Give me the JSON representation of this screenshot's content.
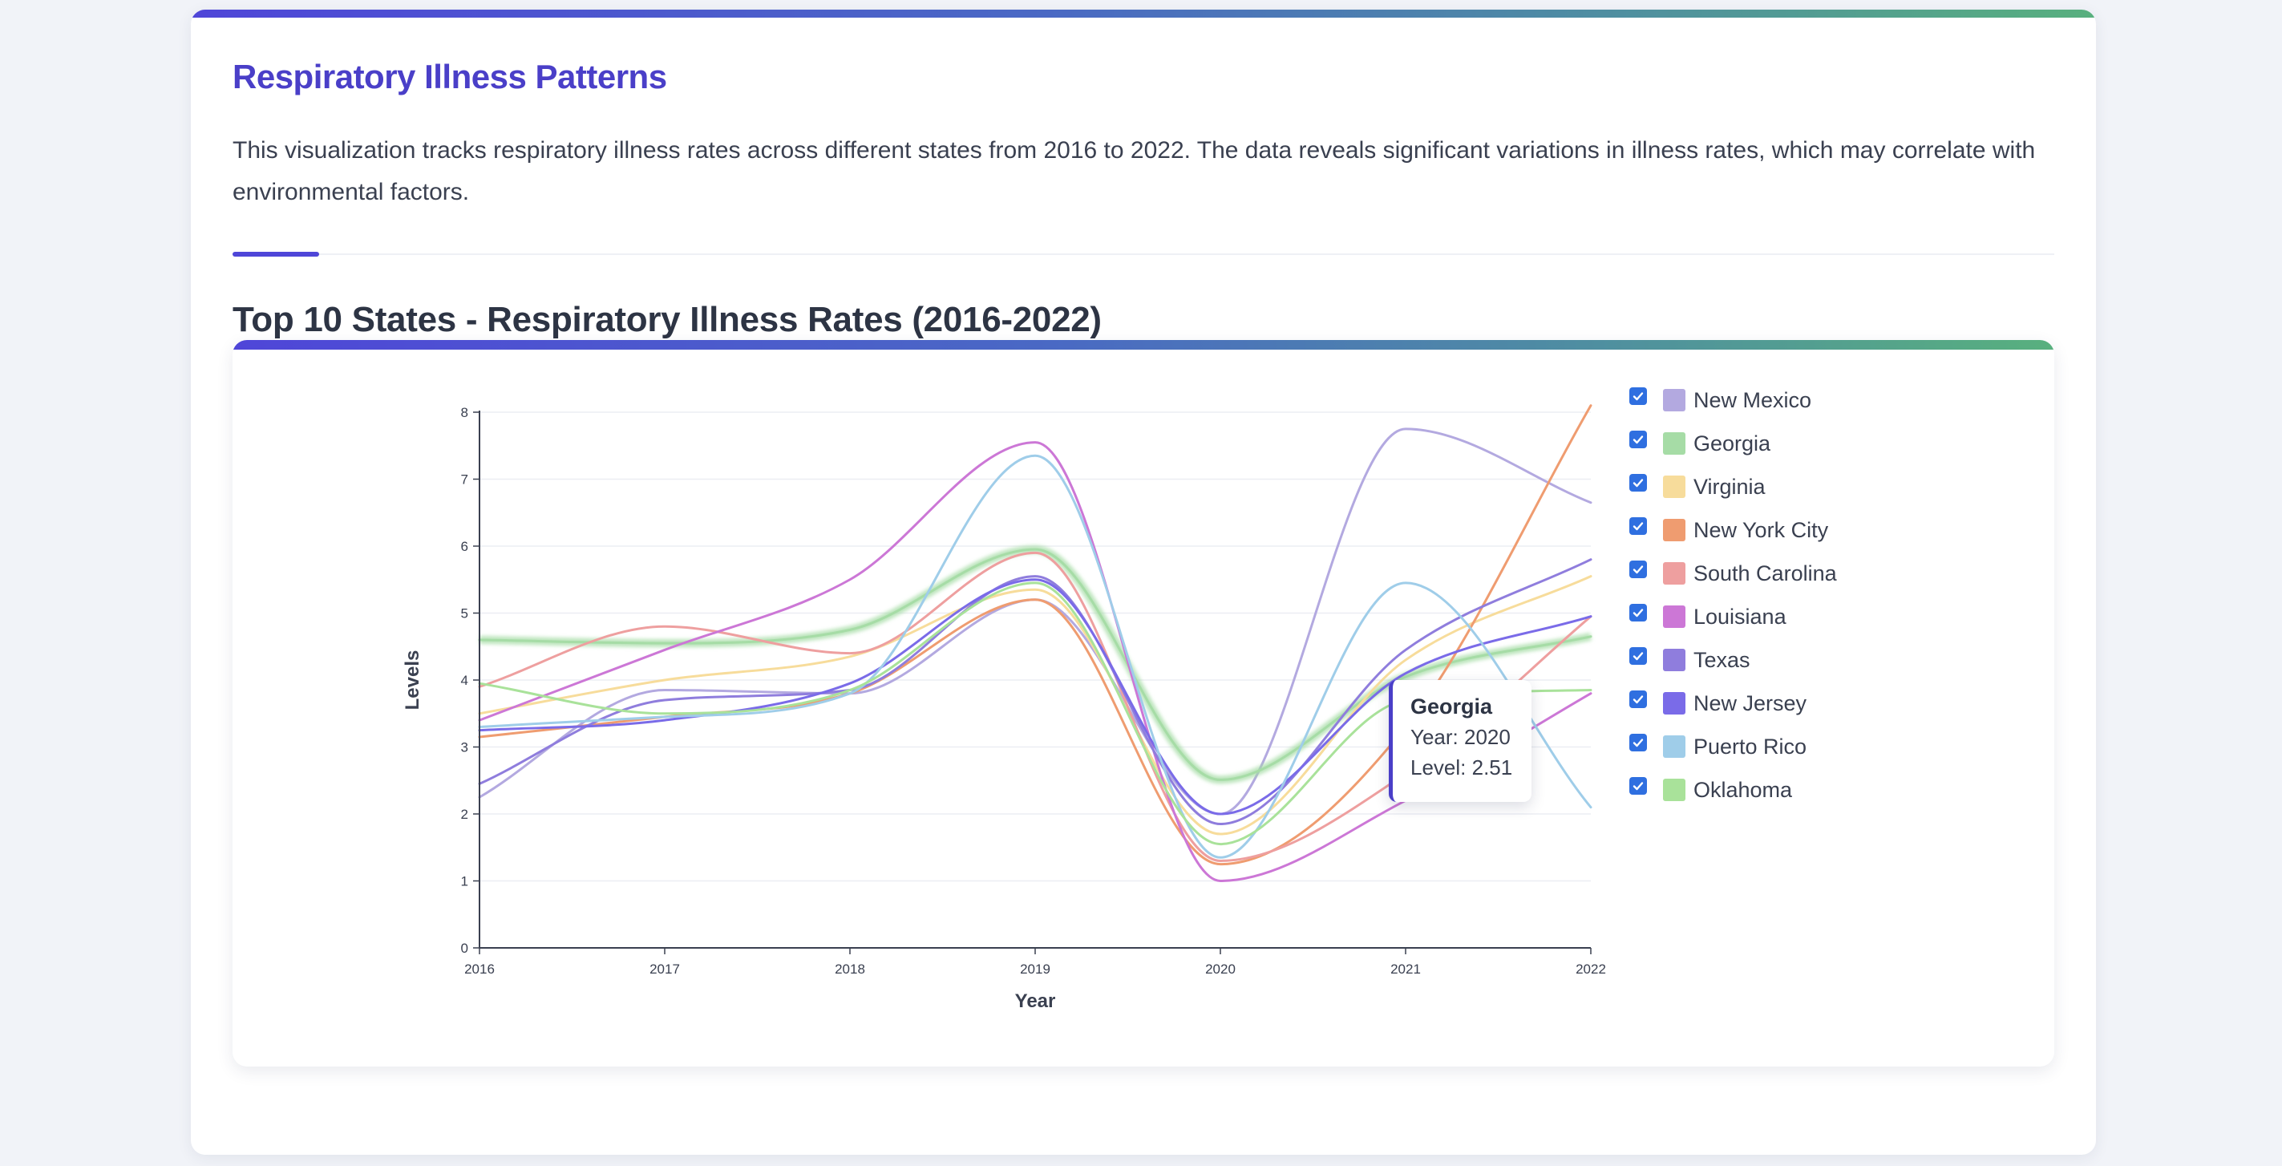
{
  "page": {
    "title": "Respiratory Illness Patterns",
    "description": "This visualization tracks respiratory illness rates across different states from 2016 to 2022. The data reveals significant variations in illness rates, which may correlate with environmental factors.",
    "accent_color": "#4a3fc8"
  },
  "chart_section": {
    "heading": "Top 10 States - Respiratory Illness Rates (2016-2022)"
  },
  "tooltip": {
    "state": "Georgia",
    "year_text": "Year: 2020",
    "level_text": "Level: 2.51"
  },
  "chart_data": {
    "type": "line",
    "xlabel": "Year",
    "ylabel": "Levels",
    "x": [
      2016,
      2017,
      2018,
      2019,
      2020,
      2021,
      2022
    ],
    "xlim": [
      2016,
      2022
    ],
    "ylim": [
      0,
      8
    ],
    "yticks": [
      0,
      1,
      2,
      3,
      4,
      5,
      6,
      7,
      8
    ],
    "grid": true,
    "legend_position": "right",
    "highlighted_series": "Georgia",
    "series": [
      {
        "name": "New Mexico",
        "color": "#b3a9e0",
        "checked": true,
        "values": [
          2.25,
          3.85,
          3.8,
          5.2,
          2.0,
          7.75,
          6.65
        ]
      },
      {
        "name": "Georgia",
        "color": "#a6dca6",
        "checked": true,
        "values": [
          4.6,
          4.55,
          4.75,
          5.95,
          2.51,
          4.05,
          4.65
        ]
      },
      {
        "name": "Virginia",
        "color": "#f7dc9b",
        "checked": true,
        "values": [
          3.5,
          4.0,
          4.35,
          5.35,
          1.7,
          4.3,
          5.55
        ]
      },
      {
        "name": "New York City",
        "color": "#ef9c70",
        "checked": true,
        "values": [
          3.15,
          3.45,
          3.8,
          5.2,
          1.25,
          3.3,
          8.1
        ]
      },
      {
        "name": "South Carolina",
        "color": "#ee9f9f",
        "checked": true,
        "values": [
          3.9,
          4.8,
          4.4,
          5.9,
          1.3,
          2.6,
          4.95
        ]
      },
      {
        "name": "Louisiana",
        "color": "#cc77d6",
        "checked": true,
        "values": [
          3.4,
          4.45,
          5.5,
          7.55,
          1.0,
          2.2,
          3.8
        ]
      },
      {
        "name": "Texas",
        "color": "#8f7ddd",
        "checked": true,
        "values": [
          2.45,
          3.7,
          3.85,
          5.55,
          1.85,
          4.45,
          5.8
        ]
      },
      {
        "name": "New Jersey",
        "color": "#7a6be8",
        "checked": true,
        "values": [
          3.25,
          3.4,
          3.95,
          5.5,
          2.0,
          4.1,
          4.95
        ]
      },
      {
        "name": "Puerto Rico",
        "color": "#9fcde9",
        "checked": true,
        "values": [
          3.3,
          3.45,
          3.8,
          7.35,
          1.35,
          5.45,
          2.1
        ]
      },
      {
        "name": "Oklahoma",
        "color": "#a9e29a",
        "checked": true,
        "values": [
          3.95,
          3.5,
          3.85,
          5.45,
          1.55,
          3.7,
          3.85
        ]
      }
    ]
  }
}
